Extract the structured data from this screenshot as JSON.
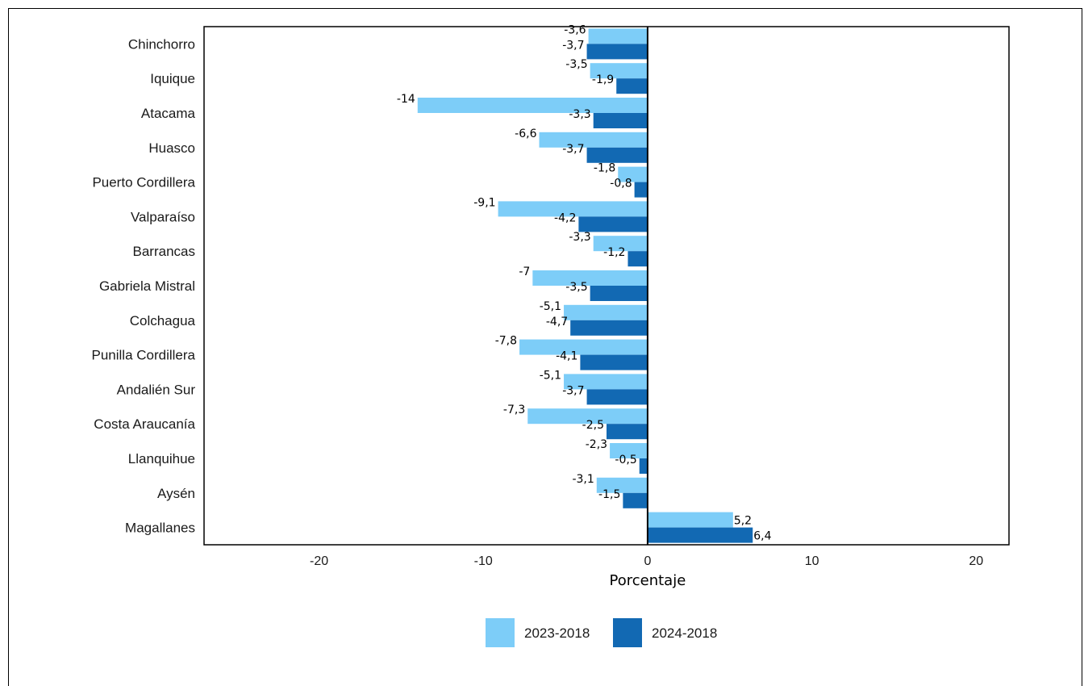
{
  "chart_data": {
    "type": "bar",
    "orientation": "horizontal",
    "categories": [
      "Chinchorro",
      "Iquique",
      "Atacama",
      "Huasco",
      "Puerto Cordillera",
      "Valparaíso",
      "Barrancas",
      "Gabriela Mistral",
      "Colchagua",
      "Punilla Cordillera",
      "Andalién Sur",
      "Costa Araucanía",
      "Llanquihue",
      "Aysén",
      "Magallanes"
    ],
    "series": [
      {
        "name": "2023-2018",
        "color": "#7dcdf8",
        "values": [
          -3.6,
          -3.5,
          -14,
          -6.6,
          -1.8,
          -9.1,
          -3.3,
          -7,
          -5.1,
          -7.8,
          -5.1,
          -7.3,
          -2.3,
          -3.1,
          5.2
        ],
        "labels": [
          "-3,6",
          "-3,5",
          "-14",
          "-6,6",
          "-1,8",
          "-9,1",
          "-3,3",
          "-7",
          "-5,1",
          "-7,8",
          "-5,1",
          "-7,3",
          "-2,3",
          "-3,1",
          "5,2"
        ]
      },
      {
        "name": "2024-2018",
        "color": "#1269b3",
        "values": [
          -3.7,
          -1.9,
          -3.3,
          -3.7,
          -0.8,
          -4.2,
          -1.2,
          -3.5,
          -4.7,
          -4.1,
          -3.7,
          -2.5,
          -0.5,
          -1.5,
          6.4
        ],
        "labels": [
          "-3,7",
          "-1,9",
          "-3,3",
          "-3,7",
          "-0,8",
          "-4,2",
          "-1,2",
          "-3,5",
          "-4,7",
          "-4,1",
          "-3,7",
          "-2,5",
          "-0,5",
          "-1,5",
          "6,4"
        ]
      }
    ],
    "xlabel": "Porcentaje",
    "ylabel": "",
    "xlim": [
      -27,
      22
    ],
    "xticks": [
      -20,
      -10,
      0,
      10,
      20
    ],
    "xtick_labels": [
      "-20",
      "-10",
      "0",
      "10",
      "20"
    ],
    "legend_position": "bottom",
    "grid": false
  }
}
